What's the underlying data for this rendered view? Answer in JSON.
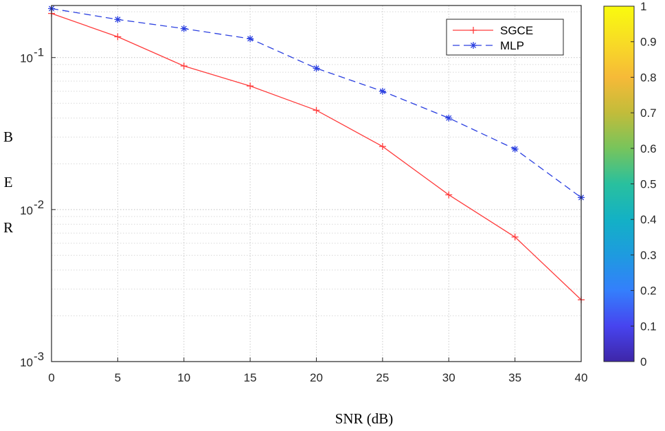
{
  "chart_data": {
    "type": "line",
    "title": "",
    "xlabel": "SNR (dB)",
    "ylabel_letters": [
      "B",
      "E",
      "R"
    ],
    "yscale": "log",
    "xlim": [
      0,
      40
    ],
    "ylim": [
      0.001,
      0.22
    ],
    "grid": true,
    "x": [
      0,
      5,
      10,
      15,
      20,
      25,
      30,
      35,
      40
    ],
    "xticks": [
      "0",
      "5",
      "10",
      "15",
      "20",
      "25",
      "30",
      "35",
      "40"
    ],
    "yticks": [
      {
        "value": 0.1,
        "base": "10",
        "exp": "-1"
      },
      {
        "value": 0.01,
        "base": "10",
        "exp": "-2"
      },
      {
        "value": 0.001,
        "base": "10",
        "exp": "-3"
      }
    ],
    "series": [
      {
        "name": "SGCE",
        "color": "#ff3b3b",
        "style": "solid",
        "marker": "plus",
        "values": [
          0.195,
          0.137,
          0.088,
          0.065,
          0.045,
          0.026,
          0.0125,
          0.0066,
          0.00255
        ]
      },
      {
        "name": "MLP",
        "color": "#2a3fe0",
        "style": "dashed",
        "marker": "asterisk",
        "values": [
          0.21,
          0.178,
          0.155,
          0.133,
          0.085,
          0.06,
          0.04,
          0.025,
          0.012
        ]
      }
    ],
    "legend": {
      "placement": "top-right",
      "entries": [
        "SGCE",
        "MLP"
      ]
    },
    "colorbar": {
      "placement": "right",
      "ticks": [
        "0",
        "0.1",
        "0.2",
        "0.3",
        "0.4",
        "0.5",
        "0.6",
        "0.7",
        "0.8",
        "0.9",
        "1"
      ],
      "colors": [
        "#3e26a8",
        "#4744ef",
        "#347ffc",
        "#1e9bdf",
        "#13b1c5",
        "#29c09e",
        "#77c45c",
        "#c2bc3a",
        "#f6ba38",
        "#f8dc25",
        "#f9fb0e"
      ]
    }
  }
}
